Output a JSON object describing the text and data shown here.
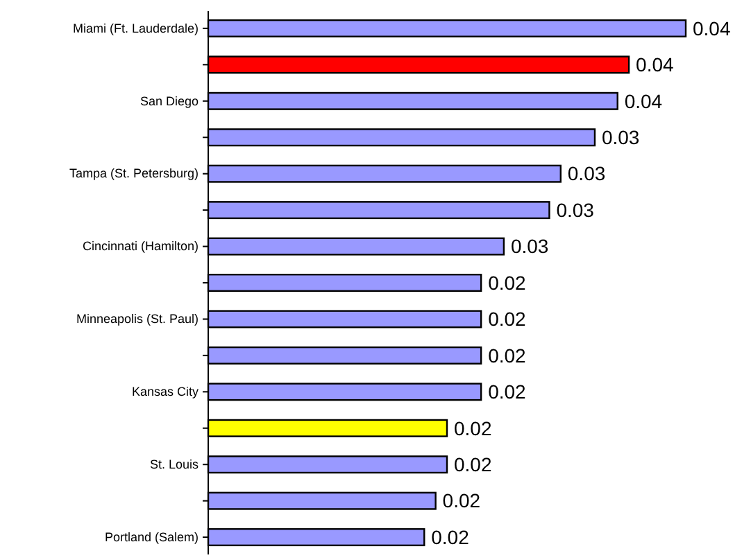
{
  "chart_data": {
    "type": "bar",
    "orientation": "horizontal",
    "relative": false,
    "categories": [
      "Miami (Ft. Lauderdale)",
      null,
      "San Diego",
      null,
      "Tampa (St. Petersburg)",
      null,
      "Cincinnati (Hamilton)",
      null,
      "Minneapolis (St. Paul)",
      null,
      "Kansas City",
      null,
      "St. Louis",
      null,
      "Portland (Salem)"
    ],
    "values": [
      0.042,
      0.037,
      0.036,
      0.034,
      0.031,
      0.03,
      0.026,
      0.024,
      0.024,
      0.024,
      0.024,
      0.021,
      0.021,
      0.02,
      0.019
    ],
    "colors": [
      "#9999ff",
      "#ff0000",
      "#9999ff",
      "#9999ff",
      "#9999ff",
      "#9999ff",
      "#9999ff",
      "#9999ff",
      "#9999ff",
      "#9999ff",
      "#9999ff",
      "#ffff00",
      "#9999ff",
      "#9999ff",
      "#9999ff"
    ],
    "value_labels": [
      "0.04",
      "0.04",
      "0.04",
      "0.03",
      "0.03",
      "0.03",
      "0.03",
      "0.02",
      "0.02",
      "0.02",
      "0.02",
      "0.02",
      "0.02",
      "0.02",
      "0.02"
    ]
  }
}
